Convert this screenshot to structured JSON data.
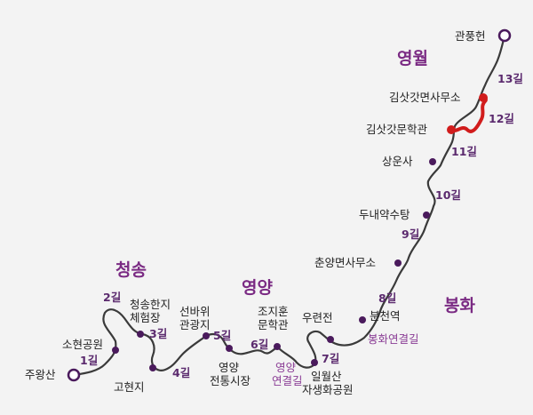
{
  "colors": {
    "trail": "#3a3a3a",
    "highlight": "#d11c1c",
    "node": "#4a1a5c",
    "region": "#7a2a83"
  },
  "regions": {
    "cheongsong": "청송",
    "yeongyang": "영양",
    "bonghwa": "봉화",
    "yeongwol": "영월"
  },
  "places": {
    "juwangsan": "주왕산",
    "sohyeon_park": "소현공원",
    "cheongsong_hanji_1": "청송한지",
    "cheongsong_hanji_2": "체험장",
    "gohyeonji": "고현지",
    "seonbawi_1": "선바위",
    "seonbawi_2": "관광지",
    "yeongyang_market_1": "영양",
    "yeongyang_market_2": "전통시장",
    "jojihun_1": "조지훈",
    "jojihun_2": "문학관",
    "ilwolsan_1": "일월산",
    "ilwolsan_2": "자생화공원",
    "uryeonjeon": "우련전",
    "bunchyeon": "분천역",
    "chunyang_office": "춘양면사무소",
    "dunae": "두내약수탕",
    "sangunsa": "상운사",
    "kimsatgat_museum": "김삿갓문학관",
    "kimsatgat_office": "김삿갓면사무소",
    "gwanpunghyeon": "관풍헌"
  },
  "connectors": {
    "yeongyang_1": "영양",
    "yeongyang_2": "연결길",
    "bonghwa": "봉화연결길"
  },
  "segments": [
    "1길",
    "2길",
    "3길",
    "4길",
    "5길",
    "6길",
    "7길",
    "8길",
    "9길",
    "10길",
    "11길",
    "12길",
    "13길"
  ]
}
